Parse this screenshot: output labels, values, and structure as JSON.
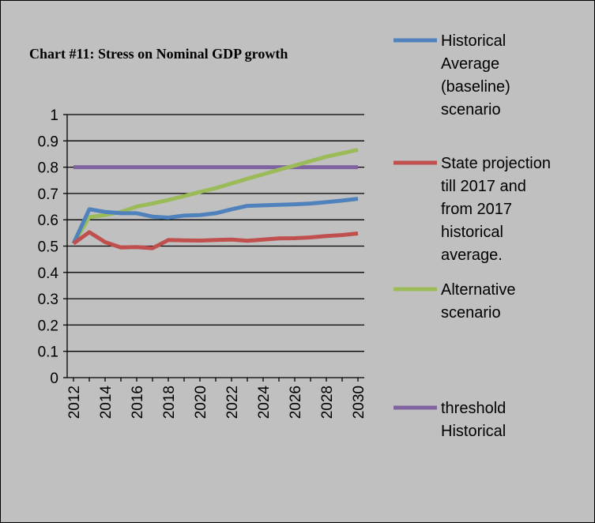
{
  "chart_data": {
    "type": "line",
    "title": "Chart #11: Stress on Nominal GDP growth",
    "xlabel": "",
    "ylabel": "",
    "x": [
      2012,
      2013,
      2014,
      2015,
      2016,
      2017,
      2018,
      2019,
      2020,
      2021,
      2022,
      2023,
      2024,
      2025,
      2026,
      2027,
      2028,
      2029,
      2030
    ],
    "x_tick_labels": [
      "2012",
      "2014",
      "2016",
      "2018",
      "2020",
      "2022",
      "2024",
      "2026",
      "2028",
      "2030"
    ],
    "ylim": [
      0,
      1
    ],
    "y_tick_labels": [
      "0",
      "0.1",
      "0.2",
      "0.3",
      "0.4",
      "0.5",
      "0.6",
      "0.7",
      "0.8",
      "0.9",
      "1"
    ],
    "grid": "horizontal",
    "legend_position": "right",
    "series": [
      {
        "legend_lines": [
          "Historical",
          "Average",
          "(baseline)",
          "scenario"
        ],
        "color": "#4f81bd",
        "values": [
          0.51,
          0.64,
          0.63,
          0.625,
          0.625,
          0.612,
          0.608,
          0.616,
          0.618,
          0.625,
          0.64,
          0.653,
          0.655,
          0.657,
          0.659,
          0.662,
          0.667,
          0.673,
          0.68
        ]
      },
      {
        "legend_lines": [
          "State projection",
          "till 2017 and",
          "from 2017",
          "historical",
          "average."
        ],
        "color": "#c0504d",
        "values": [
          0.51,
          0.553,
          0.515,
          0.495,
          0.496,
          0.492,
          0.523,
          0.522,
          0.521,
          0.523,
          0.525,
          0.52,
          0.525,
          0.529,
          0.53,
          0.533,
          0.538,
          0.542,
          0.548
        ]
      },
      {
        "legend_lines": [
          "Alternative",
          "scenario"
        ],
        "color": "#9bbb59",
        "values": [
          0.51,
          0.61,
          0.618,
          0.63,
          0.65,
          0.662,
          0.675,
          0.69,
          0.706,
          0.72,
          0.738,
          0.756,
          0.773,
          0.79,
          0.806,
          0.823,
          0.84,
          0.853,
          0.866
        ]
      },
      {
        "legend_lines": [
          "threshold",
          "Historical"
        ],
        "color": "#8064a2",
        "values": [
          0.8,
          0.8,
          0.8,
          0.8,
          0.8,
          0.8,
          0.8,
          0.8,
          0.8,
          0.8,
          0.8,
          0.8,
          0.8,
          0.8,
          0.8,
          0.8,
          0.8,
          0.8,
          0.8
        ]
      }
    ]
  }
}
